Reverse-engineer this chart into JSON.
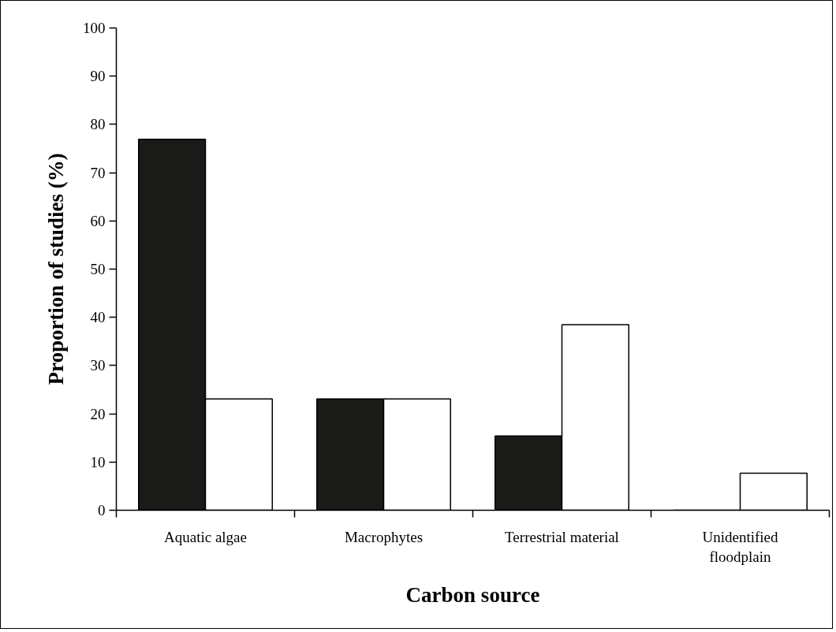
{
  "chart_data": {
    "type": "bar",
    "xlabel": "Carbon source",
    "ylabel": "Proportion of studies (%)",
    "categories": [
      "Aquatic algae",
      "Macrophytes",
      "Terrestrial material",
      "Unidentified floodplain"
    ],
    "series": [
      {
        "color": "#1a1a18",
        "values": [
          76.9,
          23.1,
          15.4,
          0
        ]
      },
      {
        "color": "#ffffff",
        "values": [
          23.1,
          23.1,
          38.5,
          7.7
        ]
      }
    ],
    "ylim": [
      0,
      100
    ],
    "yticks": [
      0,
      10,
      20,
      30,
      40,
      50,
      60,
      70,
      80,
      90,
      100
    ],
    "grid": false
  }
}
